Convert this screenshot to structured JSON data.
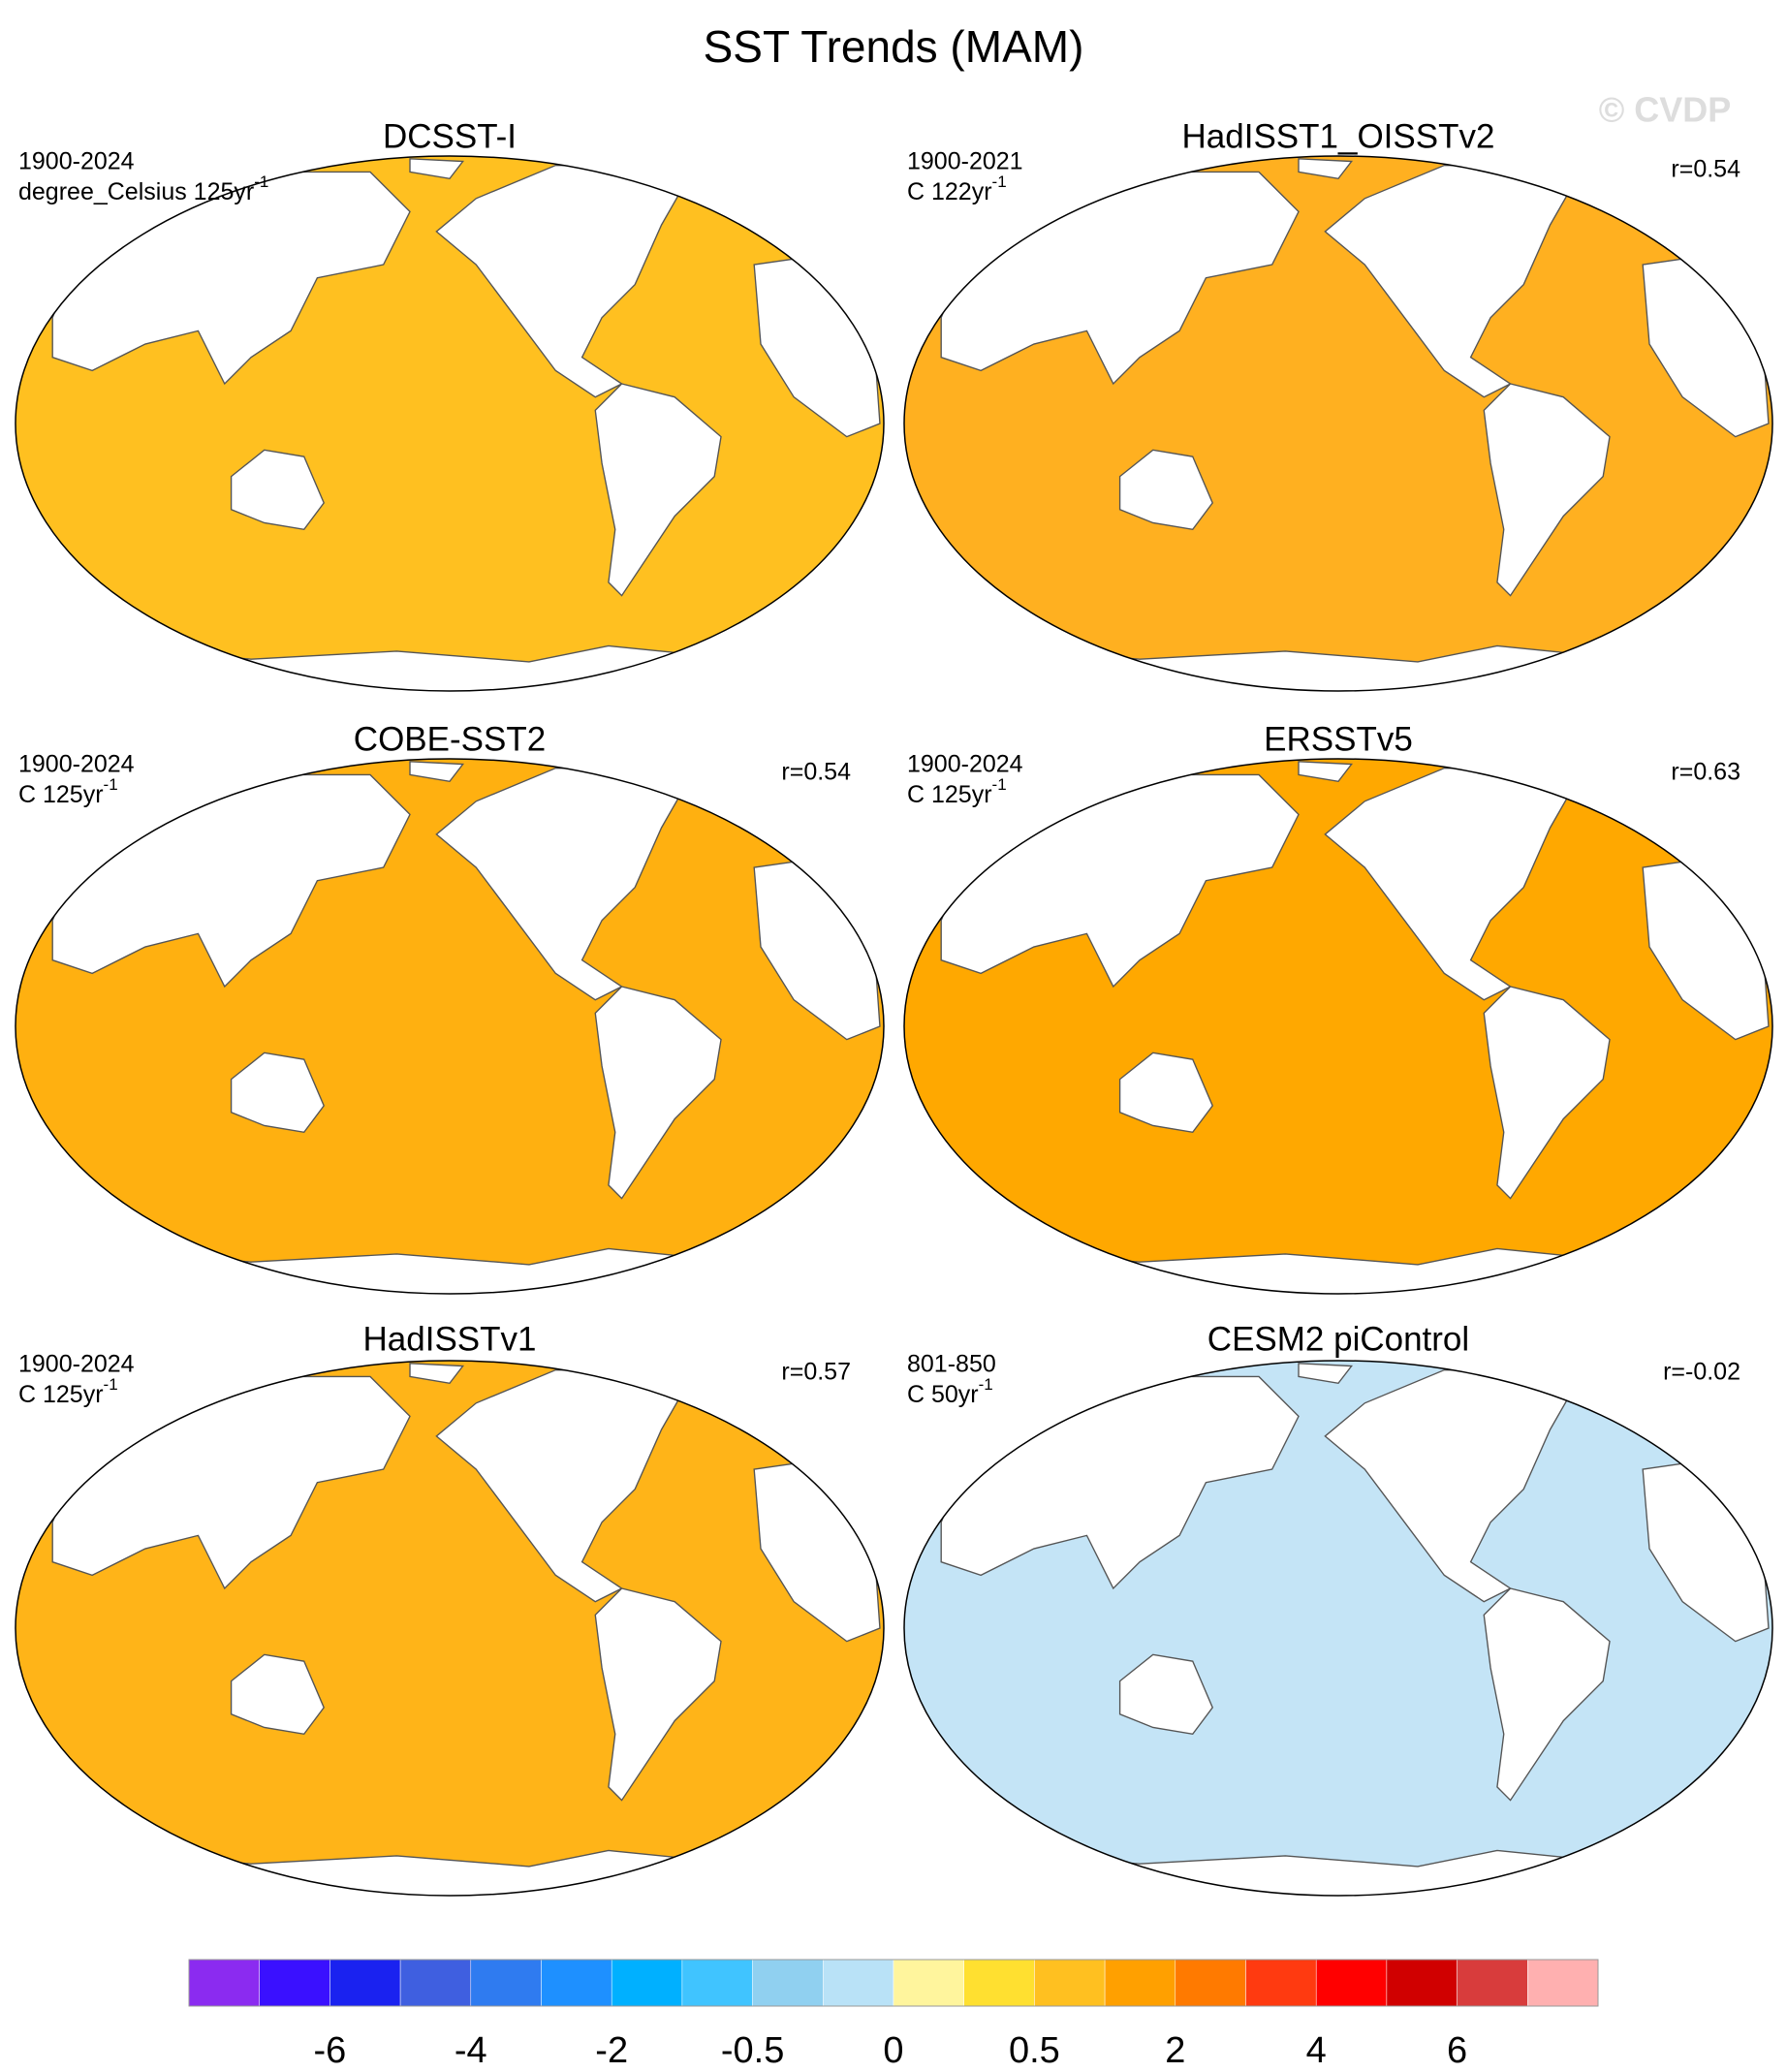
{
  "title": "SST Trends (MAM)",
  "watermark": "© CVDP",
  "panels": [
    {
      "title": "DCSST-I",
      "period": "1900-2024",
      "units": "degree_Celsius 125yr",
      "units_sup": "-1",
      "color": "#FFC020"
    },
    {
      "title": "HadISST1_OISSTv2",
      "period": "1900-2021",
      "units": "C 122yr",
      "units_sup": "-1",
      "r": "r=0.54",
      "color": "#FFB020"
    },
    {
      "title": "COBE-SST2",
      "period": "1900-2024",
      "units": "C 125yr",
      "units_sup": "-1",
      "r": "r=0.54",
      "color": "#FFB010"
    },
    {
      "title": "ERSSTv5",
      "period": "1900-2024",
      "units": "C 125yr",
      "units_sup": "-1",
      "r": "r=0.63",
      "color": "#FFA800"
    },
    {
      "title": "HadISSTv1",
      "period": "1900-2024",
      "units": "C 125yr",
      "units_sup": "-1",
      "r": "r=0.57",
      "color": "#FFB418"
    },
    {
      "title": "CESM2 piControl",
      "period": "801-850",
      "units": "C 50yr",
      "units_sup": "-1",
      "r": "r=-0.02",
      "color": "#C4E4F6"
    }
  ],
  "colorbar": {
    "colors": [
      "#8B2BF0",
      "#3A10FF",
      "#1A22F0",
      "#3F5FE0",
      "#2F7BF0",
      "#1E90FF",
      "#00B0FF",
      "#40C4FF",
      "#90D0F0",
      "#B9E2F7",
      "#FFF59D",
      "#FFE030",
      "#FFC020",
      "#FFA000",
      "#FF7A00",
      "#FF3A10",
      "#FF0000",
      "#D00000",
      "#D83C3C",
      "#FFB0B0"
    ],
    "ticks": [
      -6,
      -4,
      -2,
      -0.5,
      0,
      0.5,
      2,
      4,
      6
    ]
  }
}
